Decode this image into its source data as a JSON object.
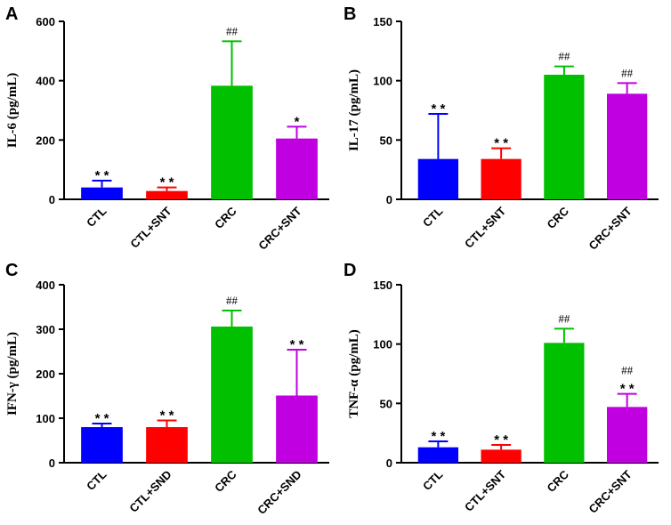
{
  "colors": [
    "#0000ff",
    "#ff0000",
    "#00c000",
    "#c000e0"
  ],
  "chart_data": [
    {
      "type": "bar",
      "panel": "A",
      "ylabel": "IL-6 (pg/mL)",
      "ylim": [
        0,
        600
      ],
      "yticks": [
        0,
        200,
        400,
        600
      ],
      "categories": [
        "CTL",
        "CTL+SNT",
        "CRC",
        "CRC+SNT"
      ],
      "values": [
        40,
        28,
        383,
        205
      ],
      "errors": [
        23,
        12,
        150,
        40
      ],
      "annotations": [
        [
          "* *"
        ],
        [
          "* *"
        ],
        [
          "##"
        ],
        [
          "*"
        ]
      ]
    },
    {
      "type": "bar",
      "panel": "B",
      "ylabel": "IL-17 (pg/mL)",
      "ylim": [
        0,
        150
      ],
      "yticks": [
        0,
        50,
        100,
        150
      ],
      "categories": [
        "CTL",
        "CTL+SNT",
        "CRC",
        "CRC+SNT"
      ],
      "values": [
        34,
        34,
        105,
        89
      ],
      "errors": [
        38,
        9,
        7,
        9
      ],
      "annotations": [
        [
          "* *"
        ],
        [
          "* *"
        ],
        [
          "##"
        ],
        [
          "##"
        ]
      ]
    },
    {
      "type": "bar",
      "panel": "C",
      "ylabel": "IFN-γ (pg/mL)",
      "ylim": [
        0,
        400
      ],
      "yticks": [
        0,
        100,
        200,
        300,
        400
      ],
      "categories": [
        "CTL",
        "CTL+SND",
        "CRC",
        "CRC+SND"
      ],
      "values": [
        80,
        80,
        306,
        151
      ],
      "errors": [
        8,
        15,
        36,
        103
      ],
      "annotations": [
        [
          "* *"
        ],
        [
          "* *"
        ],
        [
          "##"
        ],
        [
          "* *"
        ]
      ]
    },
    {
      "type": "bar",
      "panel": "D",
      "ylabel": "TNF-α (pg/mL)",
      "ylim": [
        0,
        150
      ],
      "yticks": [
        0,
        50,
        100,
        150
      ],
      "categories": [
        "CTL",
        "CTL+SNT",
        "CRC",
        "CRC+SNT"
      ],
      "values": [
        13,
        11,
        101,
        47
      ],
      "errors": [
        5,
        4,
        12,
        11
      ],
      "annotations": [
        [
          "* *"
        ],
        [
          "* *"
        ],
        [
          "##"
        ],
        [
          "##",
          "* *"
        ]
      ]
    }
  ]
}
